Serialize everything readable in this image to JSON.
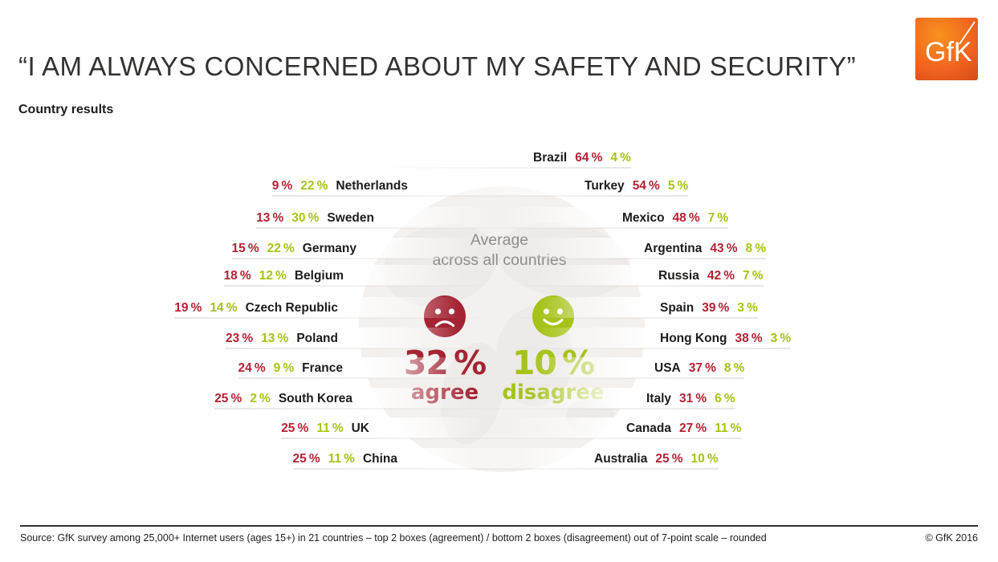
{
  "header": {
    "title": "“I AM ALWAYS CONCERNED ABOUT MY SAFETY AND SECURITY”",
    "subtitle": "Country results"
  },
  "logo": {
    "text": "GfK"
  },
  "average": {
    "heading_line1": "Average",
    "heading_line2": "across all countries",
    "agree_label": "agree",
    "disagree_label": "disagree",
    "sad_icon": "sad-face",
    "happy_icon": "happy-face"
  },
  "chart_data": {
    "type": "table",
    "title": "“I AM ALWAYS CONCERNED ABOUT MY SAFETY AND SECURITY”",
    "subtitle": "Country results",
    "unit": "%",
    "series": [
      "agree",
      "disagree"
    ],
    "average": {
      "agree": 32,
      "disagree": 10
    },
    "left_column": [
      {
        "country": "Netherlands",
        "agree": 9,
        "disagree": 22
      },
      {
        "country": "Sweden",
        "agree": 13,
        "disagree": 30
      },
      {
        "country": "Germany",
        "agree": 15,
        "disagree": 22
      },
      {
        "country": "Belgium",
        "agree": 18,
        "disagree": 12
      },
      {
        "country": "Czech Republic",
        "agree": 19,
        "disagree": 14
      },
      {
        "country": "Poland",
        "agree": 23,
        "disagree": 13
      },
      {
        "country": "France",
        "agree": 24,
        "disagree": 9
      },
      {
        "country": "South Korea",
        "agree": 25,
        "disagree": 2
      },
      {
        "country": "UK",
        "agree": 25,
        "disagree": 11
      },
      {
        "country": "China",
        "agree": 25,
        "disagree": 11
      }
    ],
    "right_column": [
      {
        "country": "Brazil",
        "agree": 64,
        "disagree": 4
      },
      {
        "country": "Turkey",
        "agree": 54,
        "disagree": 5
      },
      {
        "country": "Mexico",
        "agree": 48,
        "disagree": 7
      },
      {
        "country": "Argentina",
        "agree": 43,
        "disagree": 8
      },
      {
        "country": "Russia",
        "agree": 42,
        "disagree": 7
      },
      {
        "country": "Spain",
        "agree": 39,
        "disagree": 3
      },
      {
        "country": "Hong Kong",
        "agree": 38,
        "disagree": 3
      },
      {
        "country": "USA",
        "agree": 37,
        "disagree": 8
      },
      {
        "country": "Italy",
        "agree": 31,
        "disagree": 6
      },
      {
        "country": "Canada",
        "agree": 27,
        "disagree": 11
      },
      {
        "country": "Australia",
        "agree": 25,
        "disagree": 10
      }
    ]
  },
  "footer": {
    "source": "Source: GfK survey among 25,000+ Internet users (ages 15+) in 21 countries – top 2 boxes (agreement) / bottom 2 boxes (disagreement) out of 7-point scale – rounded",
    "copyright": "© GfK 2016"
  },
  "colors": {
    "agree_red_large": "#a42433",
    "agree_red_row": "#b52233",
    "disagree_green": "#a6c319",
    "average_gray": "#8e8d8b",
    "text_dark": "#1d1c1b",
    "footer_rule": "#33312f",
    "watermark_gray": "#f1eeea",
    "logo_gradient": [
      "#f9921e",
      "#f1661f",
      "#d54a18"
    ]
  }
}
